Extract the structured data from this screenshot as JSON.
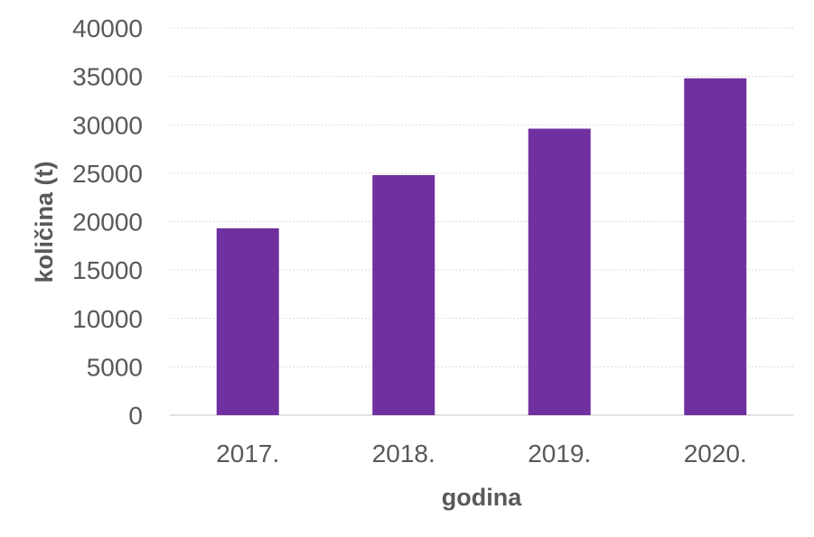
{
  "chart_data": {
    "type": "bar",
    "categories": [
      "2017.",
      "2018.",
      "2019.",
      "2020."
    ],
    "values": [
      19300,
      24800,
      29600,
      34800
    ],
    "title": "",
    "xlabel": "godina",
    "ylabel": "količina (t)",
    "ylim": [
      0,
      40000
    ],
    "yticks": [
      0,
      5000,
      10000,
      15000,
      20000,
      25000,
      30000,
      35000,
      40000
    ],
    "grid": true,
    "bar_color": "#7030a0",
    "grid_color": "#d9d9d9",
    "text_color": "#595959"
  }
}
